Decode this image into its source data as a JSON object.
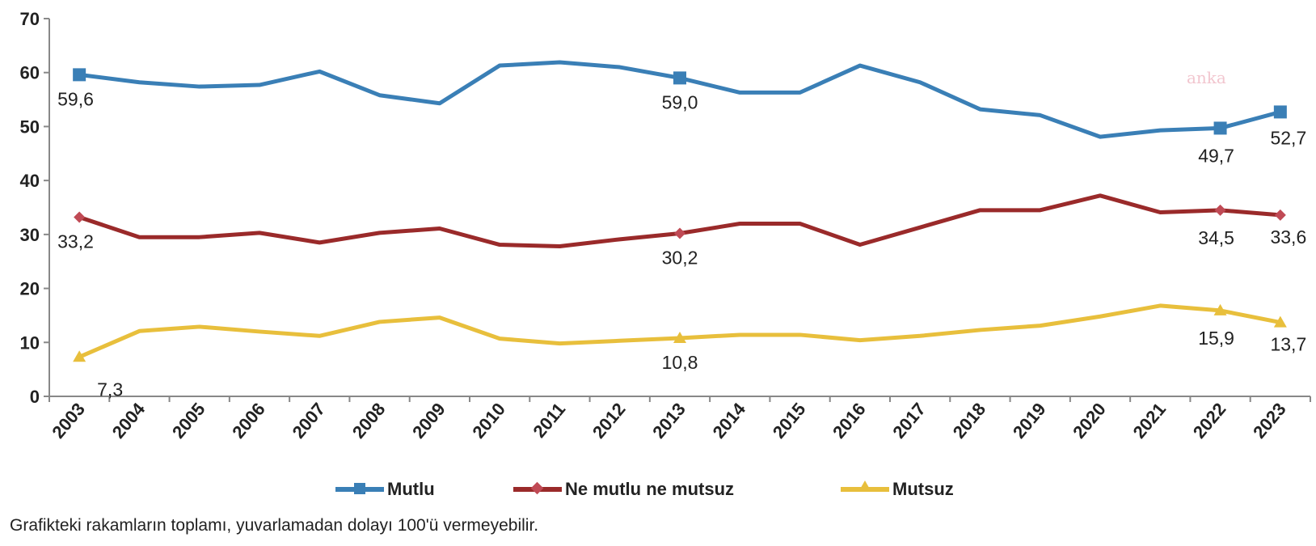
{
  "chart_data": {
    "type": "line",
    "categories": [
      "2003",
      "2004",
      "2005",
      "2006",
      "2007",
      "2008",
      "2009",
      "2010",
      "2011",
      "2012",
      "2013",
      "2014",
      "2015",
      "2016",
      "2017",
      "2018",
      "2019",
      "2020",
      "2021",
      "2022",
      "2023"
    ],
    "series": [
      {
        "name": "Mutlu",
        "color": "#3a7fb6",
        "marker": "square",
        "values": [
          59.6,
          58.2,
          57.4,
          57.7,
          60.2,
          55.8,
          54.3,
          61.3,
          61.9,
          61.0,
          59.0,
          56.3,
          56.3,
          61.3,
          58.2,
          53.2,
          52.1,
          48.1,
          49.3,
          49.7,
          52.7
        ]
      },
      {
        "name": "Ne mutlu ne mutsuz",
        "color": "#9a2a2a",
        "marker": "diamond",
        "values": [
          33.2,
          29.5,
          29.5,
          30.3,
          28.5,
          30.3,
          31.1,
          28.1,
          27.8,
          29.1,
          30.2,
          32.0,
          32.0,
          28.1,
          31.3,
          34.5,
          34.5,
          37.2,
          34.1,
          34.5,
          33.6
        ]
      },
      {
        "name": "Mutsuz",
        "color": "#e8bf3c",
        "marker": "triangle",
        "values": [
          7.3,
          12.1,
          12.9,
          12.0,
          11.2,
          13.8,
          14.6,
          10.7,
          9.8,
          10.3,
          10.8,
          11.4,
          11.4,
          10.4,
          11.2,
          12.3,
          13.1,
          14.8,
          16.8,
          15.9,
          13.7
        ]
      }
    ],
    "data_labels": [
      {
        "series": 0,
        "year": "2003",
        "text": "59,6"
      },
      {
        "series": 0,
        "year": "2013",
        "text": "59,0"
      },
      {
        "series": 0,
        "year": "2022",
        "text": "49,7"
      },
      {
        "series": 0,
        "year": "2023",
        "text": "52,7"
      },
      {
        "series": 1,
        "year": "2003",
        "text": "33,2"
      },
      {
        "series": 1,
        "year": "2013",
        "text": "30,2"
      },
      {
        "series": 1,
        "year": "2022",
        "text": "34,5"
      },
      {
        "series": 1,
        "year": "2023",
        "text": "33,6"
      },
      {
        "series": 2,
        "year": "2003",
        "text": "7,3"
      },
      {
        "series": 2,
        "year": "2013",
        "text": "10,8"
      },
      {
        "series": 2,
        "year": "2022",
        "text": "15,9"
      },
      {
        "series": 2,
        "year": "2023",
        "text": "13,7"
      }
    ],
    "yticks": [
      "0",
      "10",
      "20",
      "30",
      "40",
      "50",
      "60",
      "70"
    ],
    "ylim": [
      0,
      70
    ],
    "grid": false,
    "legend_position": "bottom",
    "title": "",
    "xlabel": "",
    "ylabel": ""
  },
  "legend": [
    "Mutlu",
    "Ne mutlu ne mutsuz",
    "Mutsuz"
  ],
  "footnote": "Grafikteki rakamların toplamı, yuvarlamadan dolayı 100'ü vermeyebilir.",
  "watermark": "anka"
}
